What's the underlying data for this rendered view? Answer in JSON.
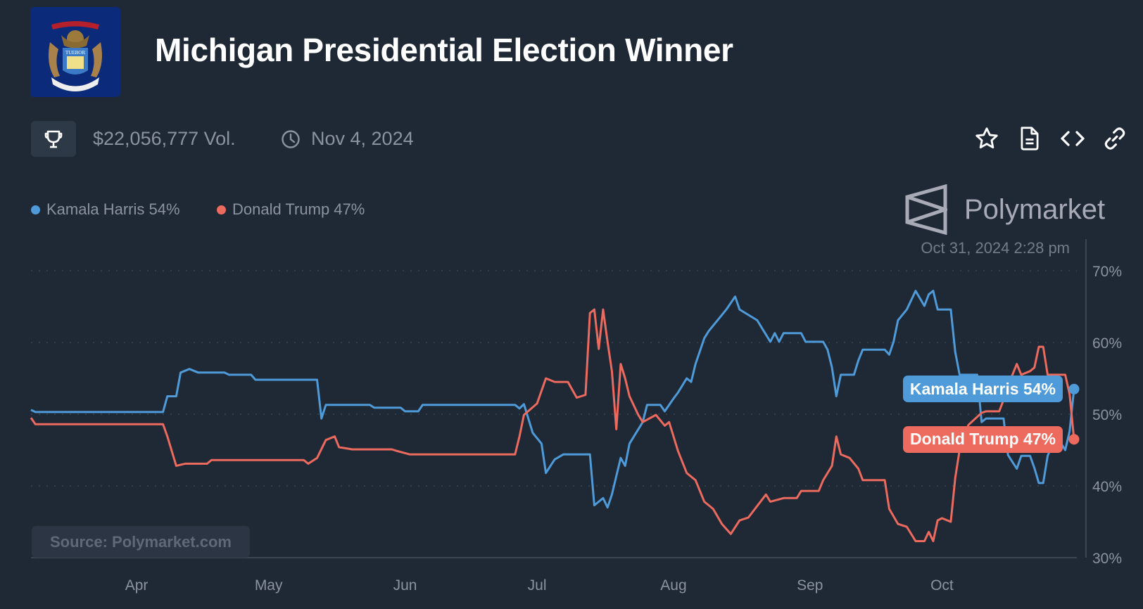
{
  "header": {
    "title": "Michigan Presidential Election Winner",
    "flag_text": "TUEBOR",
    "volume": "$22,056,777 Vol.",
    "end_date": "Nov 4, 2024",
    "icons": [
      "trophy-icon",
      "clock-icon",
      "star-icon",
      "document-icon",
      "code-icon",
      "link-icon"
    ]
  },
  "legend": [
    {
      "label": "Kamala Harris 54%",
      "color": "#4f9bd9"
    },
    {
      "label": "Donald Trump 47%",
      "color": "#ec6a5e"
    }
  ],
  "brand": "Polymarket",
  "timestamp": "Oct 31, 2024 2:28 pm",
  "source": "Source: Polymarket.com",
  "colors": {
    "background": "#1f2936",
    "harris": "#4f9bd9",
    "trump": "#ec6a5e"
  },
  "chart_data": {
    "type": "line",
    "title": "",
    "xlabel": "",
    "ylabel": "",
    "x_range": [
      "2024-03-08",
      "2024-10-31"
    ],
    "ylim": [
      30,
      70
    ],
    "y_ticks": [
      "70%",
      "60%",
      "50%",
      "40%",
      "30%"
    ],
    "y_tick_values": [
      70,
      60,
      50,
      40,
      30
    ],
    "x_ticks": [
      "Apr",
      "May",
      "Jun",
      "Jul",
      "Aug",
      "Sep",
      "Oct"
    ],
    "x_tick_dates": [
      "2024-04-01",
      "2024-05-01",
      "2024-06-01",
      "2024-07-01",
      "2024-08-01",
      "2024-09-01",
      "2024-10-01"
    ],
    "y_axis_position": "right",
    "grid": "horizontal dotted",
    "legend_position": "top-left",
    "series": [
      {
        "name": "Kamala Harris",
        "end_label": "Kamala Harris 54%",
        "color": "#4f9bd9",
        "points": [
          [
            "2024-03-08",
            50.6
          ],
          [
            "2024-03-09",
            50.3
          ],
          [
            "2024-04-07",
            50.3
          ],
          [
            "2024-04-08",
            52.5
          ],
          [
            "2024-04-10",
            52.5
          ],
          [
            "2024-04-11",
            55.8
          ],
          [
            "2024-04-13",
            56.3
          ],
          [
            "2024-04-15",
            55.8
          ],
          [
            "2024-04-21",
            55.8
          ],
          [
            "2024-04-22",
            55.5
          ],
          [
            "2024-04-27",
            55.5
          ],
          [
            "2024-04-28",
            54.8
          ],
          [
            "2024-05-12",
            54.8
          ],
          [
            "2024-05-13",
            49.4
          ],
          [
            "2024-05-14",
            51.3
          ],
          [
            "2024-05-24",
            51.3
          ],
          [
            "2024-05-25",
            50.9
          ],
          [
            "2024-05-31",
            50.9
          ],
          [
            "2024-06-01",
            50.4
          ],
          [
            "2024-06-04",
            50.4
          ],
          [
            "2024-06-05",
            51.3
          ],
          [
            "2024-06-26",
            51.3
          ],
          [
            "2024-06-27",
            50.8
          ],
          [
            "2024-06-28",
            51.4
          ],
          [
            "2024-06-30",
            47.4
          ],
          [
            "2024-07-02",
            45.9
          ],
          [
            "2024-07-03",
            41.8
          ],
          [
            "2024-07-05",
            43.7
          ],
          [
            "2024-07-07",
            44.4
          ],
          [
            "2024-07-13",
            44.4
          ],
          [
            "2024-07-14",
            37.3
          ],
          [
            "2024-07-16",
            38.3
          ],
          [
            "2024-07-17",
            37.0
          ],
          [
            "2024-07-18",
            38.8
          ],
          [
            "2024-07-20",
            43.9
          ],
          [
            "2024-07-21",
            42.8
          ],
          [
            "2024-07-22",
            45.9
          ],
          [
            "2024-07-23",
            46.9
          ],
          [
            "2024-07-25",
            48.9
          ],
          [
            "2024-07-26",
            51.3
          ],
          [
            "2024-07-29",
            51.3
          ],
          [
            "2024-07-30",
            50.4
          ],
          [
            "2024-08-01",
            52.2
          ],
          [
            "2024-08-02",
            53.0
          ],
          [
            "2024-08-04",
            55.0
          ],
          [
            "2024-08-05",
            54.5
          ],
          [
            "2024-08-06",
            57.0
          ],
          [
            "2024-08-08",
            60.6
          ],
          [
            "2024-08-09",
            61.6
          ],
          [
            "2024-08-11",
            63.1
          ],
          [
            "2024-08-13",
            64.6
          ],
          [
            "2024-08-15",
            66.4
          ],
          [
            "2024-08-16",
            64.6
          ],
          [
            "2024-08-20",
            63.1
          ],
          [
            "2024-08-22",
            61.1
          ],
          [
            "2024-08-23",
            60.1
          ],
          [
            "2024-08-24",
            61.3
          ],
          [
            "2024-08-25",
            60.1
          ],
          [
            "2024-08-26",
            61.3
          ],
          [
            "2024-08-30",
            61.3
          ],
          [
            "2024-08-31",
            60.1
          ],
          [
            "2024-09-04",
            60.1
          ],
          [
            "2024-09-05",
            59.0
          ],
          [
            "2024-09-06",
            56.5
          ],
          [
            "2024-09-07",
            52.5
          ],
          [
            "2024-09-08",
            55.5
          ],
          [
            "2024-09-11",
            55.5
          ],
          [
            "2024-09-12",
            57.5
          ],
          [
            "2024-09-13",
            59.0
          ],
          [
            "2024-09-18",
            59.0
          ],
          [
            "2024-09-19",
            58.3
          ],
          [
            "2024-09-20",
            60.1
          ],
          [
            "2024-09-21",
            63.1
          ],
          [
            "2024-09-23",
            64.6
          ],
          [
            "2024-09-25",
            67.2
          ],
          [
            "2024-09-27",
            65.1
          ],
          [
            "2024-09-28",
            66.7
          ],
          [
            "2024-09-29",
            67.2
          ],
          [
            "2024-09-30",
            64.6
          ],
          [
            "2024-10-03",
            64.6
          ],
          [
            "2024-10-04",
            58.7
          ],
          [
            "2024-10-05",
            55.5
          ],
          [
            "2024-10-09",
            55.5
          ],
          [
            "2024-10-10",
            48.9
          ],
          [
            "2024-10-11",
            49.4
          ],
          [
            "2024-10-15",
            49.4
          ],
          [
            "2024-10-16",
            44.3
          ],
          [
            "2024-10-18",
            42.4
          ],
          [
            "2024-10-19",
            44.2
          ],
          [
            "2024-10-21",
            44.2
          ],
          [
            "2024-10-22",
            42.5
          ],
          [
            "2024-10-23",
            40.4
          ],
          [
            "2024-10-24",
            40.4
          ],
          [
            "2024-10-25",
            44.2
          ],
          [
            "2024-10-27",
            47.0
          ],
          [
            "2024-10-29",
            45.0
          ],
          [
            "2024-10-30",
            47.6
          ],
          [
            "2024-10-31",
            53.5
          ]
        ]
      },
      {
        "name": "Donald Trump",
        "end_label": "Donald Trump 47%",
        "color": "#ec6a5e",
        "points": [
          [
            "2024-03-08",
            49.5
          ],
          [
            "2024-03-09",
            48.6
          ],
          [
            "2024-04-07",
            48.6
          ],
          [
            "2024-04-08",
            46.9
          ],
          [
            "2024-04-10",
            42.8
          ],
          [
            "2024-04-12",
            43.1
          ],
          [
            "2024-04-17",
            43.1
          ],
          [
            "2024-04-18",
            43.6
          ],
          [
            "2024-05-09",
            43.6
          ],
          [
            "2024-05-10",
            43.1
          ],
          [
            "2024-05-12",
            43.9
          ],
          [
            "2024-05-14",
            46.4
          ],
          [
            "2024-05-16",
            46.9
          ],
          [
            "2024-05-17",
            45.4
          ],
          [
            "2024-05-20",
            45.1
          ],
          [
            "2024-05-29",
            45.1
          ],
          [
            "2024-05-30",
            44.9
          ],
          [
            "2024-06-02",
            44.4
          ],
          [
            "2024-06-26",
            44.4
          ],
          [
            "2024-06-27",
            46.9
          ],
          [
            "2024-06-28",
            49.9
          ],
          [
            "2024-07-01",
            51.5
          ],
          [
            "2024-07-03",
            55.0
          ],
          [
            "2024-07-05",
            54.5
          ],
          [
            "2024-07-08",
            54.5
          ],
          [
            "2024-07-10",
            52.3
          ],
          [
            "2024-07-12",
            52.7
          ],
          [
            "2024-07-13",
            64.1
          ],
          [
            "2024-07-14",
            64.6
          ],
          [
            "2024-07-15",
            59.1
          ],
          [
            "2024-07-16",
            64.6
          ],
          [
            "2024-07-17",
            60.1
          ],
          [
            "2024-07-18",
            56.0
          ],
          [
            "2024-07-19",
            47.9
          ],
          [
            "2024-07-20",
            57.0
          ],
          [
            "2024-07-21",
            55.0
          ],
          [
            "2024-07-22",
            52.5
          ],
          [
            "2024-07-24",
            49.9
          ],
          [
            "2024-07-25",
            48.9
          ],
          [
            "2024-07-28",
            49.9
          ],
          [
            "2024-07-30",
            48.4
          ],
          [
            "2024-07-31",
            48.9
          ],
          [
            "2024-08-02",
            44.9
          ],
          [
            "2024-08-04",
            41.8
          ],
          [
            "2024-08-06",
            40.8
          ],
          [
            "2024-08-08",
            37.8
          ],
          [
            "2024-08-10",
            36.8
          ],
          [
            "2024-08-12",
            34.7
          ],
          [
            "2024-08-14",
            33.3
          ],
          [
            "2024-08-16",
            35.2
          ],
          [
            "2024-08-18",
            35.6
          ],
          [
            "2024-08-22",
            38.8
          ],
          [
            "2024-08-23",
            37.8
          ],
          [
            "2024-08-26",
            38.3
          ],
          [
            "2024-08-29",
            38.3
          ],
          [
            "2024-08-30",
            39.3
          ],
          [
            "2024-09-03",
            39.3
          ],
          [
            "2024-09-04",
            40.8
          ],
          [
            "2024-09-06",
            42.8
          ],
          [
            "2024-09-07",
            46.9
          ],
          [
            "2024-09-08",
            44.4
          ],
          [
            "2024-09-10",
            43.9
          ],
          [
            "2024-09-12",
            42.4
          ],
          [
            "2024-09-13",
            40.8
          ],
          [
            "2024-09-18",
            40.8
          ],
          [
            "2024-09-19",
            36.8
          ],
          [
            "2024-09-21",
            34.7
          ],
          [
            "2024-09-23",
            34.3
          ],
          [
            "2024-09-25",
            32.3
          ],
          [
            "2024-09-27",
            32.3
          ],
          [
            "2024-09-28",
            33.6
          ],
          [
            "2024-09-29",
            32.3
          ],
          [
            "2024-09-30",
            35.2
          ],
          [
            "2024-10-01",
            35.5
          ],
          [
            "2024-10-03",
            35.0
          ],
          [
            "2024-10-04",
            41.1
          ],
          [
            "2024-10-05",
            45.0
          ],
          [
            "2024-10-07",
            48.5
          ],
          [
            "2024-10-10",
            50.2
          ],
          [
            "2024-10-11",
            50.4
          ],
          [
            "2024-10-14",
            50.4
          ],
          [
            "2024-10-15",
            52.0
          ],
          [
            "2024-10-17",
            55.5
          ],
          [
            "2024-10-18",
            57.0
          ],
          [
            "2024-10-19",
            55.5
          ],
          [
            "2024-10-21",
            56.0
          ],
          [
            "2024-10-22",
            56.5
          ],
          [
            "2024-10-23",
            59.4
          ],
          [
            "2024-10-24",
            59.4
          ],
          [
            "2024-10-25",
            55.5
          ],
          [
            "2024-10-29",
            55.5
          ],
          [
            "2024-10-30",
            52.8
          ],
          [
            "2024-10-31",
            46.5
          ]
        ]
      }
    ]
  }
}
